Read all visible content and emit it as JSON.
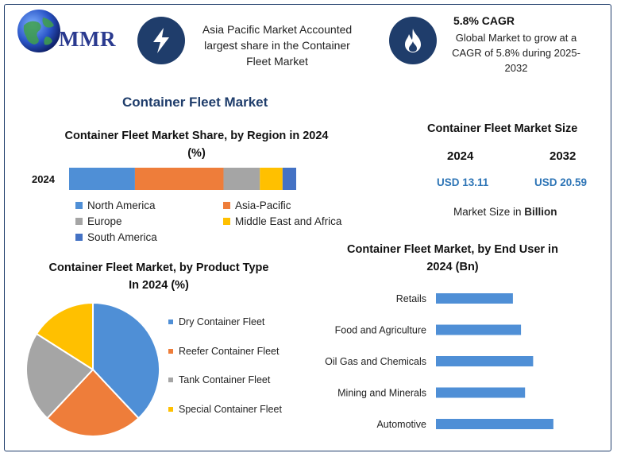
{
  "header": {
    "logo_text": "MMR",
    "callout1": "Asia Pacific Market Accounted largest share in the Container Fleet Market",
    "callout2_title": "5.8% CAGR",
    "callout2_text": "Global Market to grow at a CAGR of 5.8% during 2025-2032",
    "icon1": "lightning-icon",
    "icon2": "flame-icon"
  },
  "main_title": "Container Fleet Market",
  "market_size": {
    "title": "Container Fleet Market Size",
    "years": [
      "2024",
      "2032"
    ],
    "values": [
      "USD 13.11",
      "USD 20.59"
    ],
    "note_prefix": "Market Size in ",
    "note_bold": "Billion"
  },
  "colors": {
    "blue": "#4f8fd6",
    "orange": "#ee7d3a",
    "gray": "#a5a5a5",
    "yellow": "#ffc000",
    "darkblue": "#4472c4",
    "navy": "#1f3d6b"
  },
  "chart_data": [
    {
      "type": "bar",
      "stacked": true,
      "orientation": "horizontal",
      "title": "Container Fleet Market Share, by Region in 2024 (%)",
      "categories": [
        "2024"
      ],
      "series": [
        {
          "name": "North America",
          "values": [
            29
          ],
          "color": "#4f8fd6"
        },
        {
          "name": "Asia-Pacific",
          "values": [
            39
          ],
          "color": "#ee7d3a"
        },
        {
          "name": "Europe",
          "values": [
            16
          ],
          "color": "#a5a5a5"
        },
        {
          "name": "Middle East and Africa",
          "values": [
            10
          ],
          "color": "#ffc000"
        },
        {
          "name": "South America",
          "values": [
            6
          ],
          "color": "#4472c4"
        }
      ],
      "legend_position": "bottom"
    },
    {
      "type": "pie",
      "title": "Container Fleet Market, by Product Type In 2024 (%)",
      "labels": [
        "Dry Container Fleet",
        "Reefer Container Fleet",
        "Tank Container Fleet",
        "Special Container Fleet"
      ],
      "values": [
        38,
        24,
        22,
        16
      ],
      "colors": [
        "#4f8fd6",
        "#ee7d3a",
        "#a5a5a5",
        "#ffc000"
      ],
      "legend_position": "right"
    },
    {
      "type": "bar",
      "orientation": "horizontal",
      "title": "Container Fleet Market, by End User in 2024 (Bn)",
      "categories": [
        "Retails",
        "Food and Agriculture",
        "Oil Gas and Chemicals",
        "Mining and Minerals",
        "Automotive"
      ],
      "values": [
        1.9,
        2.1,
        2.4,
        2.2,
        2.9
      ],
      "color": "#4f8fd6",
      "grid": false
    }
  ]
}
